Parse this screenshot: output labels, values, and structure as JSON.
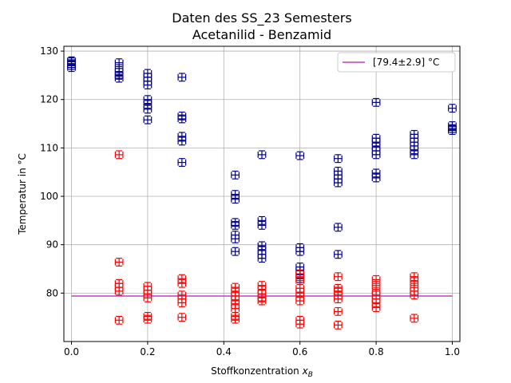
{
  "chart_data": {
    "type": "scatter",
    "title": "Daten des SS_23 Semesters",
    "subtitle": "Acetanilid - Benzamid",
    "xlabel": "Stoffkonzentration x_B",
    "ylabel": "Temperatur in °C",
    "xlim": [
      -0.02,
      1.02
    ],
    "ylim": [
      70,
      131
    ],
    "xticks": [
      0.0,
      0.2,
      0.4,
      0.6,
      0.8,
      1.0
    ],
    "xtick_labels": [
      "0.0",
      "0.2",
      "0.4",
      "0.6",
      "0.8",
      "1.0"
    ],
    "yticks": [
      80,
      90,
      100,
      110,
      120,
      130
    ],
    "ytick_labels": [
      "80",
      "90",
      "100",
      "110",
      "120",
      "130"
    ],
    "grid": true,
    "legend_position": "top-right",
    "error_bar": {
      "x": 0.01,
      "y": 0.8
    },
    "hline": {
      "y": 79.4,
      "label": "[79.4±2.9]",
      "unit": "°C",
      "color": "#bf40bf"
    },
    "series": [
      {
        "color": "#00008b",
        "points": [
          [
            0.0,
            128.0
          ],
          [
            0.0,
            127.4
          ],
          [
            0.0,
            127.0
          ],
          [
            0.0,
            126.6
          ],
          [
            0.0,
            127.8
          ],
          [
            0.125,
            127.6
          ],
          [
            0.125,
            126.4
          ],
          [
            0.125,
            125.6
          ],
          [
            0.125,
            125.0
          ],
          [
            0.125,
            124.4
          ],
          [
            0.2,
            125.4
          ],
          [
            0.2,
            124.6
          ],
          [
            0.2,
            123.8
          ],
          [
            0.2,
            123.0
          ],
          [
            0.2,
            120.0
          ],
          [
            0.2,
            119.0
          ],
          [
            0.2,
            118.0
          ],
          [
            0.2,
            115.8
          ],
          [
            0.29,
            124.6
          ],
          [
            0.29,
            116.6
          ],
          [
            0.29,
            116.0
          ],
          [
            0.29,
            112.4
          ],
          [
            0.29,
            111.4
          ],
          [
            0.29,
            107.0
          ],
          [
            0.43,
            104.4
          ],
          [
            0.43,
            100.4
          ],
          [
            0.43,
            99.4
          ],
          [
            0.43,
            94.6
          ],
          [
            0.43,
            94.0
          ],
          [
            0.43,
            92.0
          ],
          [
            0.43,
            91.2
          ],
          [
            0.43,
            88.6
          ],
          [
            0.5,
            108.6
          ],
          [
            0.5,
            95.0
          ],
          [
            0.5,
            94.0
          ],
          [
            0.5,
            89.8
          ],
          [
            0.5,
            88.8
          ],
          [
            0.5,
            88.0
          ],
          [
            0.5,
            87.2
          ],
          [
            0.6,
            108.4
          ],
          [
            0.6,
            89.4
          ],
          [
            0.6,
            88.6
          ],
          [
            0.6,
            85.4
          ],
          [
            0.6,
            84.6
          ],
          [
            0.6,
            83.8
          ],
          [
            0.6,
            83.0
          ],
          [
            0.7,
            107.8
          ],
          [
            0.7,
            105.2
          ],
          [
            0.7,
            104.4
          ],
          [
            0.7,
            103.6
          ],
          [
            0.7,
            102.8
          ],
          [
            0.7,
            93.6
          ],
          [
            0.7,
            88.0
          ],
          [
            0.8,
            119.4
          ],
          [
            0.8,
            112.0
          ],
          [
            0.8,
            111.2
          ],
          [
            0.8,
            110.2
          ],
          [
            0.8,
            109.4
          ],
          [
            0.8,
            108.6
          ],
          [
            0.8,
            104.8
          ],
          [
            0.8,
            103.8
          ],
          [
            0.9,
            112.8
          ],
          [
            0.9,
            112.0
          ],
          [
            0.9,
            111.2
          ],
          [
            0.9,
            110.4
          ],
          [
            0.9,
            109.6
          ],
          [
            0.9,
            108.6
          ],
          [
            1.0,
            118.2
          ],
          [
            1.0,
            114.6
          ],
          [
            1.0,
            114.0
          ],
          [
            1.0,
            113.6
          ]
        ]
      },
      {
        "color": "#ff0000",
        "points": [
          [
            0.125,
            108.6
          ],
          [
            0.125,
            86.4
          ],
          [
            0.125,
            82.0
          ],
          [
            0.125,
            81.2
          ],
          [
            0.125,
            80.4
          ],
          [
            0.125,
            74.4
          ],
          [
            0.2,
            81.4
          ],
          [
            0.2,
            80.6
          ],
          [
            0.2,
            79.8
          ],
          [
            0.2,
            79.0
          ],
          [
            0.2,
            75.2
          ],
          [
            0.2,
            74.6
          ],
          [
            0.29,
            83.0
          ],
          [
            0.29,
            82.0
          ],
          [
            0.29,
            79.6
          ],
          [
            0.29,
            78.8
          ],
          [
            0.29,
            78.0
          ],
          [
            0.29,
            75.0
          ],
          [
            0.43,
            81.2
          ],
          [
            0.43,
            80.2
          ],
          [
            0.43,
            79.4
          ],
          [
            0.43,
            78.6
          ],
          [
            0.43,
            77.6
          ],
          [
            0.43,
            76.8
          ],
          [
            0.43,
            75.2
          ],
          [
            0.43,
            74.6
          ],
          [
            0.5,
            81.6
          ],
          [
            0.5,
            80.6
          ],
          [
            0.5,
            79.8
          ],
          [
            0.5,
            79.0
          ],
          [
            0.5,
            78.4
          ],
          [
            0.6,
            84.0
          ],
          [
            0.6,
            82.6
          ],
          [
            0.6,
            81.0
          ],
          [
            0.6,
            80.2
          ],
          [
            0.6,
            79.2
          ],
          [
            0.6,
            78.4
          ],
          [
            0.6,
            74.4
          ],
          [
            0.6,
            73.6
          ],
          [
            0.7,
            83.4
          ],
          [
            0.7,
            81.0
          ],
          [
            0.7,
            80.4
          ],
          [
            0.7,
            79.6
          ],
          [
            0.7,
            78.8
          ],
          [
            0.7,
            76.2
          ],
          [
            0.7,
            73.4
          ],
          [
            0.8,
            82.8
          ],
          [
            0.8,
            81.6
          ],
          [
            0.8,
            80.4
          ],
          [
            0.8,
            79.6
          ],
          [
            0.8,
            78.8
          ],
          [
            0.8,
            78.0
          ],
          [
            0.8,
            77.0
          ],
          [
            0.9,
            83.4
          ],
          [
            0.9,
            82.4
          ],
          [
            0.9,
            81.2
          ],
          [
            0.9,
            80.4
          ],
          [
            0.9,
            79.6
          ],
          [
            0.9,
            74.8
          ]
        ]
      }
    ]
  }
}
